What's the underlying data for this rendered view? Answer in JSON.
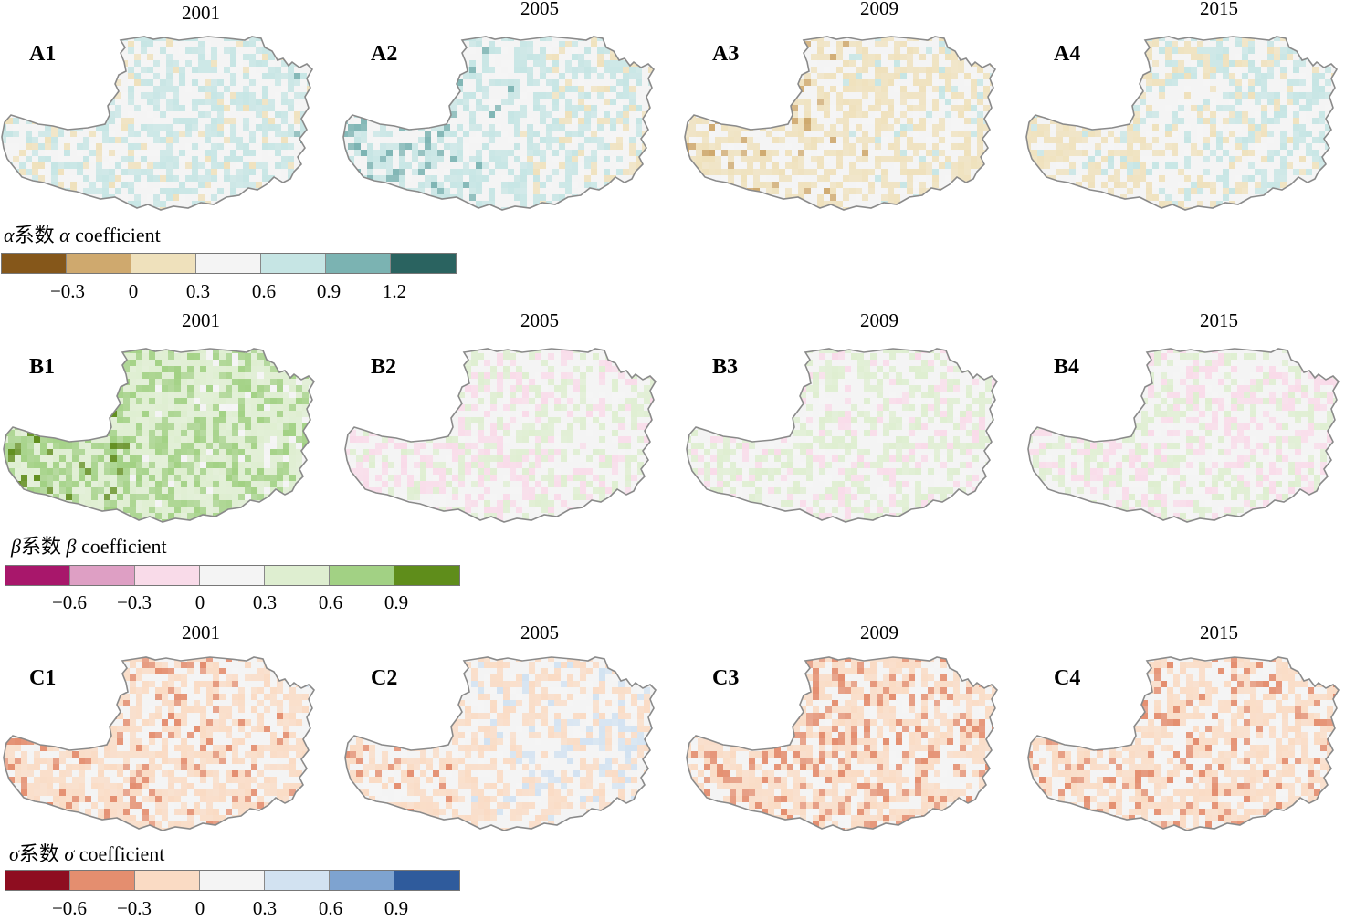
{
  "rows": [
    {
      "id": "A",
      "years": [
        "2001",
        "2005",
        "2009",
        "2015"
      ],
      "panels": [
        "A1",
        "A2",
        "A3",
        "A4"
      ],
      "legend": {
        "symbol": "α",
        "title_cn": "系数",
        "title_en": "coefficient",
        "colors": [
          "#85571a",
          "#cfa96e",
          "#efe1bc",
          "#f4f4f4",
          "#c6e5e4",
          "#7bb3b2",
          "#2a6360"
        ],
        "ticks": [
          "−0.3",
          "0",
          "0.3",
          "0.6",
          "0.9",
          "1.2"
        ]
      }
    },
    {
      "id": "B",
      "years": [
        "2001",
        "2005",
        "2009",
        "2015"
      ],
      "panels": [
        "B1",
        "B2",
        "B3",
        "B4"
      ],
      "legend": {
        "symbol": "β",
        "title_cn": "系数",
        "title_en": "coefficient",
        "colors": [
          "#a8176b",
          "#de9fc4",
          "#f9dbe9",
          "#f4f4f4",
          "#deeed0",
          "#a2d184",
          "#5f8d1b"
        ],
        "ticks": [
          "−0.6",
          "−0.3",
          "0",
          "0.3",
          "0.6",
          "0.9"
        ]
      }
    },
    {
      "id": "C",
      "years": [
        "2001",
        "2005",
        "2009",
        "2015"
      ],
      "panels": [
        "C1",
        "C2",
        "C3",
        "C4"
      ],
      "legend": {
        "symbol": "σ",
        "title_cn": "系数",
        "title_en": "coefficient",
        "colors": [
          "#8e0d20",
          "#e48e6f",
          "#fadbc4",
          "#f4f4f4",
          "#d2e2f1",
          "#7ea3d0",
          "#2f5b9c"
        ],
        "ticks": [
          "−0.6",
          "−0.3",
          "0",
          "0.3",
          "0.6",
          "0.9"
        ]
      }
    }
  ],
  "map_style": {
    "outline_color": "#8a8a8a"
  }
}
